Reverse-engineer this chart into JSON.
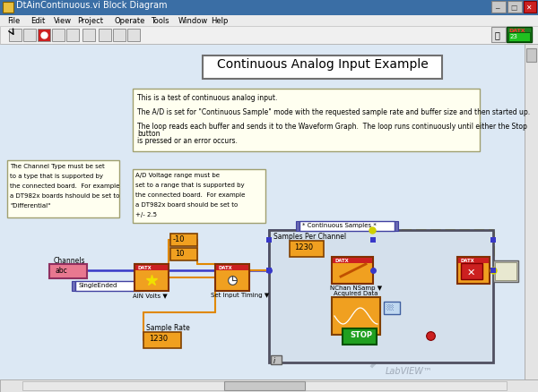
{
  "title_bar_color": "#3a6ea5",
  "title_bar_text": "DtAinContinuous.vi Block Diagram",
  "window_bg": "#c0c0c0",
  "canvas_bg": "#c8d8e8",
  "menu_bar_bg": "#ececec",
  "toolbar_bg": "#f0f0f0",
  "menu_items": [
    "File",
    "Edit",
    "View",
    "Project",
    "Operate",
    "Tools",
    "Window",
    "Help"
  ],
  "main_title": "Continuous Analog Input Example",
  "desc_lines": [
    "This is a test of continuous analog input.",
    "",
    "The A/D is set for \"Continuous Sample\" mode with the requested sample rate and buffer size and then started up.",
    "",
    "The loop reads each buffer and sends it to the Waveform Graph.  The loop runs continuously until either the Stop",
    "button",
    "is pressed or an error occurs."
  ],
  "note1_lines": [
    "The Channel Type must be set",
    "to a type that is supported by",
    "the connected board.  For example",
    "a DT982x boards hshould be set to",
    "\"Differential\""
  ],
  "note2_lines": [
    "A/D Voltage range must be",
    "set to a range that is supported by",
    "the connected board.  For example",
    "a DT982x board should be set to",
    "+/- 2.5"
  ],
  "orange_color": "#f0a020",
  "pink_color": "#e87890",
  "blue_wire": "#3838c8",
  "purple_wire": "#8040b0",
  "yellow_wire": "#d0d000",
  "green_wire": "#008000",
  "orange_wire": "#e08800",
  "loop_bg": "#d4e0ec",
  "loop_border": "#505060",
  "label_bg": "#fffff0",
  "note_bg": "#fffff0",
  "white": "#ffffff",
  "light_gray": "#d4d4d4",
  "canvas_light": "#dce8f4",
  "scrollbar_bg": "#e4e4e4",
  "red_btn": "#cc2020",
  "green_btn": "#20a020"
}
